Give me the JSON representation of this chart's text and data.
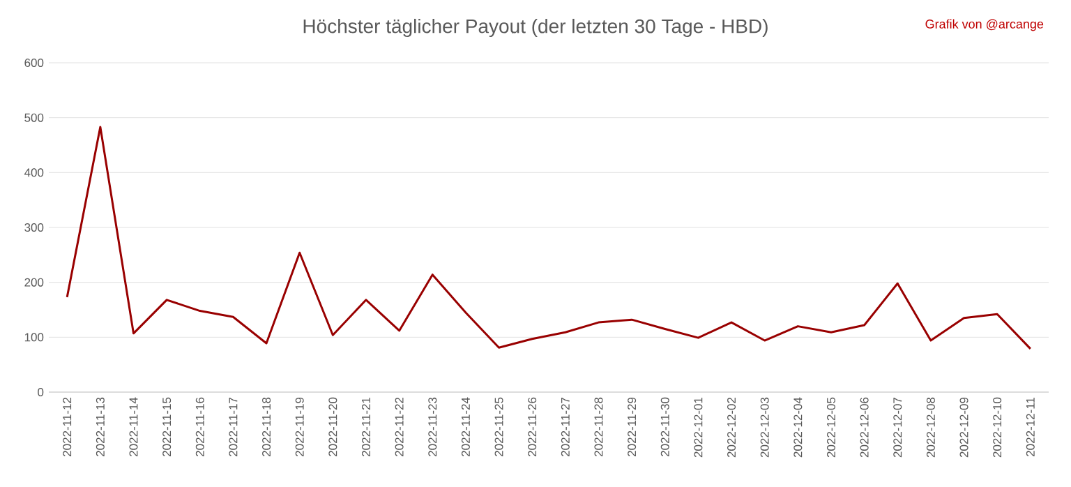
{
  "chart_data": {
    "type": "line",
    "title": "Höchster täglicher Payout (der letzten 30 Tage - HBD)",
    "annotations": [
      "Grafik von @arcange"
    ],
    "categories": [
      "2022-11-12",
      "2022-11-13",
      "2022-11-14",
      "2022-11-15",
      "2022-11-16",
      "2022-11-17",
      "2022-11-18",
      "2022-11-19",
      "2022-11-20",
      "2022-11-21",
      "2022-11-22",
      "2022-11-23",
      "2022-11-24",
      "2022-11-25",
      "2022-11-26",
      "2022-11-27",
      "2022-11-28",
      "2022-11-29",
      "2022-11-30",
      "2022-12-01",
      "2022-12-02",
      "2022-12-03",
      "2022-12-04",
      "2022-12-05",
      "2022-12-06",
      "2022-12-07",
      "2022-12-08",
      "2022-12-09",
      "2022-12-10",
      "2022-12-11"
    ],
    "series": [
      {
        "color": "#990000",
        "values": [
          173,
          483,
          107,
          168,
          148,
          137,
          89,
          254,
          104,
          168,
          112,
          214,
          145,
          81,
          97,
          109,
          127,
          132,
          115,
          99,
          127,
          94,
          120,
          109,
          122,
          198,
          94,
          135,
          142,
          79
        ]
      }
    ],
    "ylim": [
      0,
      600
    ],
    "yticks": [
      0,
      100,
      200,
      300,
      400,
      500,
      600
    ],
    "grid": "y"
  }
}
